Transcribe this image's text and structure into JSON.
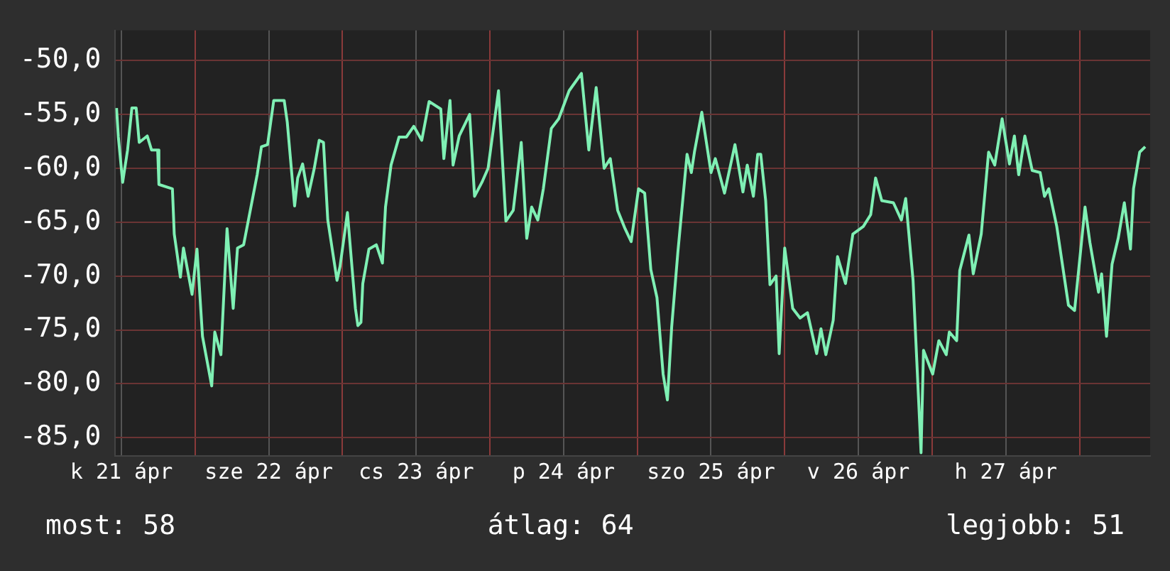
{
  "chart_data": {
    "type": "line",
    "x": [
      "--04-21T11:12",
      "--04-21T11:30",
      "--04-21T12:12",
      "--04-21T13:00",
      "--04-21T13:42",
      "--04-21T14:24",
      "--04-21T14:54",
      "--04-21T16:12",
      "--04-21T16:54",
      "--04-21T17:54",
      "--04-21T18:06",
      "--04-21T20:18",
      "--04-21T20:36",
      "--04-21T21:36",
      "--04-21T22:06",
      "--04-21T23:30",
      "--04-22T00:18",
      "--04-22T01:12",
      "--04-22T02:42",
      "--04-22T03:12",
      "--04-22T04:12",
      "--04-22T05:12",
      "--04-22T06:12",
      "--04-22T06:54",
      "--04-22T07:54",
      "--04-22T10:06",
      "--04-22T10:48",
      "--04-22T11:48",
      "--04-22T12:48",
      "--04-22T14:30",
      "--04-22T15:00",
      "--04-22T16:12",
      "--04-22T16:42",
      "--04-22T17:30",
      "--04-22T18:24",
      "--04-22T19:24",
      "--04-22T20:12",
      "--04-22T20:54",
      "--04-22T21:36",
      "--04-22T23:06",
      "--04-22T23:36",
      "--04-23T00:48",
      "--04-23T02:06",
      "--04-23T02:30",
      "--04-23T03:00",
      "--04-23T03:18",
      "--04-23T04:18",
      "--04-23T05:30",
      "--04-23T06:30",
      "--04-23T07:00",
      "--04-23T07:54",
      "--04-23T09:12",
      "--04-23T10:24",
      "--04-23T11:36",
      "--04-23T12:54",
      "--04-23T14:06",
      "--04-23T16:00",
      "--04-23T16:30",
      "--04-23T17:30",
      "--04-23T18:00",
      "--04-23T19:00",
      "--04-23T20:42",
      "--04-23T21:30",
      "--04-23T22:42",
      "--04-23T23:42",
      "--04-24T01:24",
      "--04-24T02:36",
      "--04-24T03:48",
      "--04-24T05:06",
      "--04-24T06:00",
      "--04-24T06:48",
      "--04-24T07:48",
      "--04-24T08:42",
      "--04-24T10:00",
      "--04-24T11:12",
      "--04-24T12:54",
      "--04-24T14:54",
      "--04-24T16:06",
      "--04-24T17:18",
      "--04-24T18:36",
      "--04-24T19:36",
      "--04-24T20:48",
      "--04-24T22:00",
      "--04-24T23:00",
      "--04-25T00:12",
      "--04-25T01:12",
      "--04-25T02:12",
      "--04-25T03:12",
      "--04-25T04:12",
      "--04-25T04:54",
      "--04-25T05:36",
      "--04-25T06:36",
      "--04-25T08:06",
      "--04-25T08:48",
      "--04-25T09:18",
      "--04-25T10:30",
      "--04-25T12:00",
      "--04-25T12:42",
      "--04-25T14:12",
      "--04-25T15:54",
      "--04-25T17:12",
      "--04-25T17:54",
      "--04-25T18:54",
      "--04-25T19:36",
      "--04-25T20:06",
      "--04-25T20:54",
      "--04-25T21:36",
      "--04-25T22:36",
      "--04-25T23:06",
      "--04-26T00:00",
      "--04-26T01:18",
      "--04-26T02:30",
      "--04-26T03:42",
      "--04-26T05:12",
      "--04-26T05:54",
      "--04-26T06:42",
      "--04-26T07:54",
      "--04-26T08:36",
      "--04-26T09:54",
      "--04-26T11:06",
      "--04-26T12:48",
      "--04-26T14:00",
      "--04-26T14:48",
      "--04-26T15:48",
      "--04-26T17:42",
      "--04-26T19:00",
      "--04-26T19:42",
      "--04-26T20:54",
      "--04-26T22:12",
      "--04-26T22:36",
      "--04-27T00:06",
      "--04-27T01:06",
      "--04-27T02:18",
      "--04-27T02:48",
      "--04-27T04:00",
      "--04-27T04:30",
      "--04-27T06:00",
      "--04-27T06:42",
      "--04-27T08:00",
      "--04-27T09:12",
      "--04-27T10:12",
      "--04-27T11:24",
      "--04-27T12:36",
      "--04-27T13:24",
      "--04-27T14:06",
      "--04-27T15:06",
      "--04-27T16:18",
      "--04-27T17:36",
      "--04-27T18:18",
      "--04-27T19:00",
      "--04-27T20:18",
      "--04-27T22:12",
      "--04-27T23:12",
      "--04-28T00:54",
      "--04-28T01:42",
      "--04-28T03:06",
      "--04-28T03:36",
      "--04-28T04:24",
      "--04-28T05:18",
      "--04-28T06:18",
      "--04-28T07:18",
      "--04-28T08:18",
      "--04-28T08:48",
      "--04-28T09:48",
      "--04-28T10:42"
    ],
    "series": [
      {
        "color": "#7ff0b4",
        "values": [
          -54.4,
          -57.1,
          -61.3,
          -58.3,
          -54.4,
          -54.4,
          -57.6,
          -57.0,
          -58.3,
          -58.3,
          -61.5,
          -61.9,
          -66.1,
          -70.1,
          -67.4,
          -71.7,
          -67.5,
          -75.6,
          -80.2,
          -75.2,
          -77.3,
          -65.6,
          -73.0,
          -67.4,
          -67.1,
          -60.6,
          -58.0,
          -57.8,
          -53.7,
          -53.7,
          -55.7,
          -63.5,
          -60.9,
          -59.6,
          -62.6,
          -60.0,
          -57.4,
          -57.6,
          -64.8,
          -70.4,
          -69.1,
          -64.1,
          -73.0,
          -74.6,
          -74.3,
          -70.7,
          -67.5,
          -67.1,
          -68.8,
          -63.6,
          -59.7,
          -57.1,
          -57.1,
          -56.1,
          -57.4,
          -53.8,
          -54.5,
          -59.1,
          -53.7,
          -59.7,
          -57.0,
          -55.0,
          -62.6,
          -61.3,
          -60.0,
          -52.8,
          -64.9,
          -63.9,
          -57.6,
          -66.5,
          -63.6,
          -64.8,
          -61.9,
          -56.3,
          -55.4,
          -52.8,
          -51.2,
          -58.3,
          -52.5,
          -60.0,
          -59.1,
          -63.9,
          -65.6,
          -66.8,
          -61.9,
          -62.3,
          -69.4,
          -72.0,
          -79.1,
          -81.5,
          -74.7,
          -67.8,
          -58.7,
          -60.4,
          -58.5,
          -54.8,
          -60.4,
          -59.1,
          -62.3,
          -57.8,
          -62.2,
          -59.7,
          -62.6,
          -58.7,
          -58.7,
          -63.0,
          -70.8,
          -70.0,
          -77.2,
          -67.4,
          -73.0,
          -73.9,
          -73.4,
          -77.2,
          -74.9,
          -77.3,
          -74.1,
          -68.2,
          -70.7,
          -66.1,
          -65.4,
          -64.3,
          -60.9,
          -63.0,
          -63.2,
          -64.8,
          -62.8,
          -70.4,
          -86.4,
          -76.9,
          -79.1,
          -76.0,
          -77.3,
          -75.2,
          -76.0,
          -69.5,
          -66.2,
          -69.8,
          -66.1,
          -58.5,
          -59.7,
          -55.4,
          -59.6,
          -57.0,
          -60.6,
          -57.0,
          -60.2,
          -60.4,
          -62.6,
          -61.9,
          -65.4,
          -72.7,
          -73.2,
          -63.6,
          -66.9,
          -71.5,
          -69.8,
          -75.6,
          -68.9,
          -66.5,
          -63.2,
          -67.5,
          -61.9,
          -58.5,
          -58.0
        ]
      }
    ],
    "xlim": [
      "--04-21T11:00",
      "--04-28T11:30"
    ],
    "xticks": [
      {
        "value": "--04-21T12:00",
        "label": "k 21 ápr"
      },
      {
        "value": "--04-22T00:00",
        "label": null
      },
      {
        "value": "--04-22T12:00",
        "label": "sze 22 ápr"
      },
      {
        "value": "--04-23T00:00",
        "label": null
      },
      {
        "value": "--04-23T12:00",
        "label": "cs 23 ápr"
      },
      {
        "value": "--04-24T00:00",
        "label": null
      },
      {
        "value": "--04-24T12:00",
        "label": "p 24 ápr"
      },
      {
        "value": "--04-25T00:00",
        "label": null
      },
      {
        "value": "--04-25T12:00",
        "label": "szo 25 ápr"
      },
      {
        "value": "--04-26T00:00",
        "label": null
      },
      {
        "value": "--04-26T12:00",
        "label": "v 26 ápr"
      },
      {
        "value": "--04-27T00:00",
        "label": null
      },
      {
        "value": "--04-27T12:00",
        "label": "h 27 ápr"
      },
      {
        "value": "--04-28T00:00",
        "label": null
      }
    ],
    "ylim": [
      -86.7,
      -47.2
    ],
    "yticks": [
      {
        "value": -85,
        "label": "-85,0"
      },
      {
        "value": -80,
        "label": "-80,0"
      },
      {
        "value": -75,
        "label": "-75,0"
      },
      {
        "value": -70,
        "label": "-70,0"
      },
      {
        "value": -65,
        "label": "-65,0"
      },
      {
        "value": -60,
        "label": "-60,0"
      },
      {
        "value": -55,
        "label": "-55,0"
      },
      {
        "value": -50,
        "label": "-50,0"
      }
    ],
    "grid": true,
    "legend": false,
    "marker": "none",
    "line_style": "solid",
    "annotations": [
      "most: 58",
      "átlag: 64",
      "legjobb: 51"
    ]
  }
}
